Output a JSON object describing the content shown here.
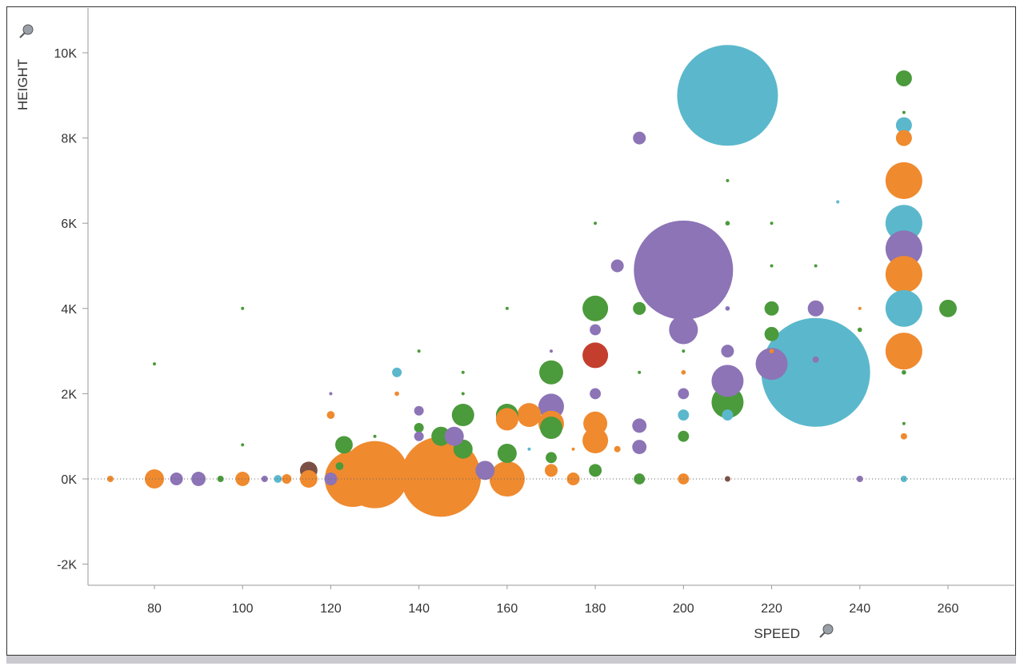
{
  "chart_data": {
    "type": "scatter",
    "subtype": "bubble",
    "xlabel": "SPEED",
    "ylabel": "HEIGHT",
    "xlim": [
      65,
      275
    ],
    "ylim": [
      -2500,
      11000
    ],
    "xticks": [
      80,
      100,
      120,
      140,
      160,
      180,
      200,
      220,
      240,
      260
    ],
    "yticks": [
      -2000,
      0,
      2000,
      4000,
      6000,
      8000,
      10000
    ],
    "ytick_labels": [
      "-2K",
      "0K",
      "2K",
      "4K",
      "6K",
      "8K",
      "10K"
    ],
    "grid": false,
    "zero_line": true,
    "legend": "none",
    "colors": {
      "green": "#4b9a3b",
      "orange": "#ef8a2f",
      "purple": "#8c74b6",
      "cyan": "#5bb8cc",
      "brown": "#7a5046",
      "red": "#c43e2e"
    },
    "point_fields": [
      "speed",
      "height",
      "size",
      "color"
    ],
    "points": [
      [
        230,
        2500,
        1156,
        "cyan"
      ],
      [
        210,
        9000,
        992,
        "cyan"
      ],
      [
        200,
        4900,
        961,
        "purple"
      ],
      [
        145,
        50,
        625,
        "orange"
      ],
      [
        130,
        100,
        441,
        "orange"
      ],
      [
        125,
        0,
        306,
        "orange"
      ],
      [
        250,
        7000,
        132,
        "orange"
      ],
      [
        250,
        6000,
        132,
        "cyan"
      ],
      [
        250,
        5400,
        132,
        "purple"
      ],
      [
        250,
        4800,
        132,
        "orange"
      ],
      [
        250,
        4000,
        132,
        "cyan"
      ],
      [
        250,
        3000,
        132,
        "orange"
      ],
      [
        160,
        0,
        121,
        "orange"
      ],
      [
        210,
        1800,
        100,
        "green"
      ],
      [
        210,
        2300,
        100,
        "purple"
      ],
      [
        220,
        2700,
        100,
        "purple"
      ],
      [
        200,
        3500,
        81,
        "purple"
      ],
      [
        170,
        1700,
        64,
        "purple"
      ],
      [
        180,
        4000,
        64,
        "green"
      ],
      [
        180,
        2900,
        64,
        "red"
      ],
      [
        170,
        1300,
        64,
        "orange"
      ],
      [
        180,
        900,
        64,
        "orange"
      ],
      [
        165,
        1500,
        56,
        "orange"
      ],
      [
        170,
        2500,
        56,
        "green"
      ],
      [
        180,
        1300,
        56,
        "orange"
      ],
      [
        150,
        1500,
        49,
        "green"
      ],
      [
        160,
        1500,
        49,
        "green"
      ],
      [
        160,
        1400,
        49,
        "orange"
      ],
      [
        170,
        1200,
        49,
        "green"
      ],
      [
        80,
        0,
        36,
        "orange"
      ],
      [
        145,
        1000,
        36,
        "green"
      ],
      [
        150,
        700,
        36,
        "green"
      ],
      [
        148,
        1000,
        36,
        "purple"
      ],
      [
        155,
        200,
        36,
        "purple"
      ],
      [
        160,
        600,
        36,
        "green"
      ],
      [
        260,
        4000,
        30,
        "green"
      ],
      [
        115,
        200,
        30,
        "brown"
      ],
      [
        115,
        0,
        30,
        "orange"
      ],
      [
        123,
        800,
        30,
        "green"
      ],
      [
        250,
        9400,
        25,
        "green"
      ],
      [
        250,
        8300,
        25,
        "cyan"
      ],
      [
        250,
        8000,
        25,
        "orange"
      ],
      [
        230,
        4000,
        25,
        "purple"
      ],
      [
        90,
        0,
        20,
        "purple"
      ],
      [
        100,
        0,
        20,
        "orange"
      ],
      [
        190,
        1250,
        20,
        "purple"
      ],
      [
        190,
        750,
        20,
        "purple"
      ],
      [
        220,
        4000,
        20,
        "green"
      ],
      [
        220,
        3400,
        20,
        "green"
      ],
      [
        120,
        0,
        16,
        "purple"
      ],
      [
        85,
        0,
        16,
        "purple"
      ],
      [
        185,
        5000,
        16,
        "purple"
      ],
      [
        190,
        8000,
        16,
        "purple"
      ],
      [
        190,
        4000,
        16,
        "green"
      ],
      [
        210,
        3000,
        16,
        "purple"
      ],
      [
        170,
        200,
        16,
        "orange"
      ],
      [
        175,
        0,
        16,
        "orange"
      ],
      [
        180,
        200,
        16,
        "green"
      ],
      [
        110,
        0,
        9,
        "orange"
      ],
      [
        135,
        2500,
        9,
        "cyan"
      ],
      [
        140,
        1600,
        9,
        "purple"
      ],
      [
        140,
        1200,
        9,
        "green"
      ],
      [
        140,
        1000,
        9,
        "purple"
      ],
      [
        170,
        500,
        12,
        "green"
      ],
      [
        180,
        3500,
        12,
        "purple"
      ],
      [
        180,
        2000,
        12,
        "purple"
      ],
      [
        190,
        0,
        12,
        "green"
      ],
      [
        200,
        2000,
        12,
        "purple"
      ],
      [
        200,
        1500,
        12,
        "cyan"
      ],
      [
        200,
        1000,
        12,
        "green"
      ],
      [
        200,
        0,
        12,
        "orange"
      ],
      [
        210,
        1500,
        12,
        "cyan"
      ],
      [
        108,
        0,
        6,
        "cyan"
      ],
      [
        120,
        1500,
        6,
        "orange"
      ],
      [
        122,
        300,
        6,
        "green"
      ],
      [
        185,
        700,
        4,
        "orange"
      ],
      [
        70,
        0,
        4,
        "orange"
      ],
      [
        95,
        0,
        4,
        "green"
      ],
      [
        105,
        0,
        4,
        "purple"
      ],
      [
        240,
        0,
        4,
        "purple"
      ],
      [
        250,
        0,
        4,
        "cyan"
      ],
      [
        250,
        1000,
        4,
        "orange"
      ],
      [
        230,
        2800,
        4,
        "purple"
      ],
      [
        210,
        0,
        3,
        "brown"
      ],
      [
        210,
        6000,
        2,
        "green"
      ],
      [
        240,
        3500,
        2,
        "green"
      ],
      [
        250,
        2500,
        2,
        "green"
      ],
      [
        200,
        2500,
        2,
        "orange"
      ],
      [
        220,
        3000,
        2,
        "orange"
      ],
      [
        135,
        2000,
        2,
        "orange"
      ],
      [
        100,
        4000,
        1,
        "green"
      ],
      [
        80,
        2700,
        1,
        "green"
      ],
      [
        210,
        7000,
        1,
        "green"
      ],
      [
        180,
        6000,
        1,
        "green"
      ],
      [
        220,
        6000,
        1,
        "green"
      ],
      [
        235,
        6500,
        1,
        "cyan"
      ],
      [
        230,
        5000,
        1,
        "green"
      ],
      [
        240,
        4000,
        1,
        "orange"
      ],
      [
        250,
        1300,
        1,
        "green"
      ],
      [
        160,
        4000,
        1,
        "green"
      ],
      [
        140,
        3000,
        1,
        "green"
      ],
      [
        200,
        3000,
        1,
        "green"
      ],
      [
        130,
        1000,
        1,
        "green"
      ],
      [
        150,
        2500,
        1,
        "green"
      ],
      [
        170,
        3000,
        1,
        "purple"
      ],
      [
        210,
        4000,
        2,
        "purple"
      ],
      [
        220,
        5000,
        1,
        "green"
      ],
      [
        250,
        8600,
        1,
        "green"
      ],
      [
        100,
        800,
        1,
        "green"
      ],
      [
        120,
        2000,
        1,
        "purple"
      ],
      [
        150,
        2000,
        1,
        "green"
      ],
      [
        175,
        700,
        1,
        "orange"
      ],
      [
        165,
        700,
        1,
        "cyan"
      ],
      [
        190,
        2500,
        1,
        "green"
      ]
    ]
  }
}
